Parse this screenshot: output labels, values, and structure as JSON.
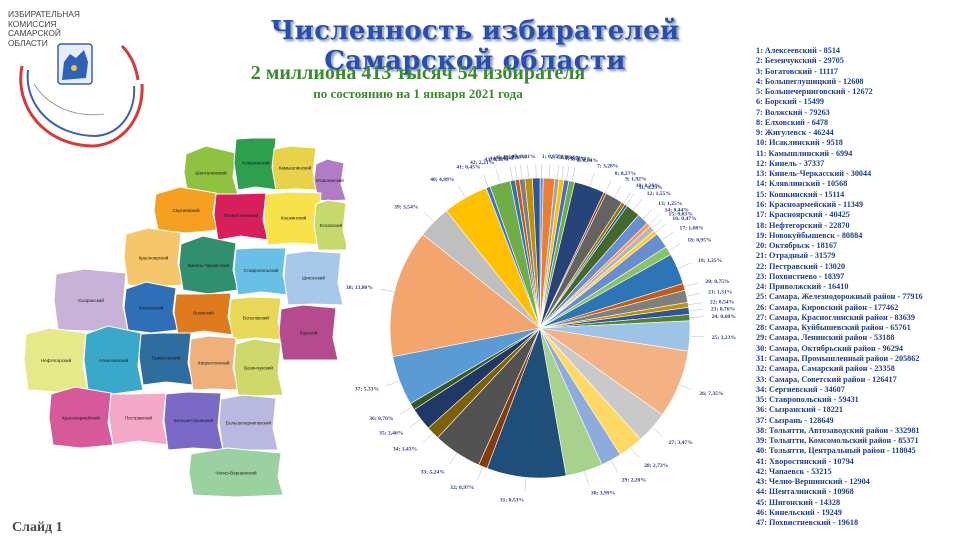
{
  "logo": {
    "text_lines": [
      "ИЗБИРАТЕЛЬНАЯ",
      "КОМИССИЯ",
      "САМАРСКОЙ",
      "ОБЛАСТИ"
    ]
  },
  "header": {
    "title": "Численность избирателей Самарской области",
    "subtitle": "2 миллиона 413 тысяч 54 избирателя",
    "subtitle_date": "по состоянию на 1 января 2021 года"
  },
  "footer": {
    "slide_label": "Слайд 1"
  },
  "legend": [
    "1: Алексеевский - 8514",
    "2: Безенчукский - 29705",
    "3: Богатовский - 11117",
    "4: Большеглушицкий - 12608",
    "5: Большечерниговский - 12672",
    "6: Борский - 15499",
    "7: Волжский - 79263",
    "8: Елховский - 6478",
    "9: Жигулевск - 46244",
    "10: Исаклинский - 9518",
    "11: Камышлинский - 6994",
    "12: Кинель - 37337",
    "13: Кинель-Черкасский - 30044",
    "14: Клявлинский - 10568",
    "15: Кошкинский - 15114",
    "16: Красноармейский - 11349",
    "17: Красноярский - 40425",
    "18: Нефтегорский - 22870",
    "19: Новокуйбышевск - 80884",
    "20: Октябрьск - 18167",
    "21: Отрадный - 31579",
    "22: Пестравский - 13020",
    "23: Похвистнево - 18397",
    "24: Приволжский - 16410",
    "25: Самара, Железнодорожный район - 77916",
    "26: Самара, Кировский район - 177462",
    "27: Самара, Красноглинский район - 83639",
    "28: Самара, Куйбышевский район - 65761",
    "29: Самара, Ленинский район - 53188",
    "30: Самара, Октябрьский район - 96294",
    "31: Самара, Промышленный район - 205862",
    "32: Самара, Самарский район - 23358",
    "33: Самара, Советский район - 126417",
    "34: Сергиевский - 34607",
    "35: Ставропольский - 59431",
    "36: Сызранский - 18221",
    "37: Сызрань - 128649",
    "38: Тольятти, Автозаводский район - 332981",
    "39: Тольятти, Комсомольский район - 85371",
    "40: Тольятти, Центральный район - 118045",
    "41: Хворостянский - 10794",
    "42: Чапаевск - 53215",
    "43: Челно-Вершинский - 12904",
    "44: Шенталинский - 10968",
    "45: Шигонский - 14328",
    "46: Кинельский - 19249",
    "47: Похвистневский - 19618"
  ],
  "chart_data": {
    "type": "pie",
    "slices": [
      {
        "id": 1,
        "label": "1; 0,35%",
        "value": 0.35,
        "color": "#5b9bd5"
      },
      {
        "id": 2,
        "label": "2; 1,23%",
        "value": 1.23,
        "color": "#ed7d31"
      },
      {
        "id": 3,
        "label": "3; 0,46%",
        "value": 0.46,
        "color": "#a5a5a5"
      },
      {
        "id": 4,
        "label": "4; 0,52%",
        "value": 0.52,
        "color": "#ffc000"
      },
      {
        "id": 5,
        "label": "5; 0,53%",
        "value": 0.53,
        "color": "#4472c4"
      },
      {
        "id": 6,
        "label": "6; 0,64%",
        "value": 0.64,
        "color": "#70ad47"
      },
      {
        "id": 7,
        "label": "7; 3,28%",
        "value": 3.28,
        "color": "#264478"
      },
      {
        "id": 8,
        "label": "8; 0,27%",
        "value": 0.27,
        "color": "#9e480e"
      },
      {
        "id": 9,
        "label": "9; 1,92%",
        "value": 1.92,
        "color": "#636363"
      },
      {
        "id": 10,
        "label": "10; 0,39%",
        "value": 0.39,
        "color": "#997300"
      },
      {
        "id": 11,
        "label": "11; 0,29%",
        "value": 0.29,
        "color": "#255e91"
      },
      {
        "id": 12,
        "label": "12; 1,55%",
        "value": 1.55,
        "color": "#43682b"
      },
      {
        "id": 13,
        "label": "13; 1,25%",
        "value": 1.25,
        "color": "#698ed0"
      },
      {
        "id": 14,
        "label": "14; 0,44%",
        "value": 0.44,
        "color": "#f1975a"
      },
      {
        "id": 15,
        "label": "15; 0,63%",
        "value": 0.63,
        "color": "#b7b7b7"
      },
      {
        "id": 16,
        "label": "16; 0,47%",
        "value": 0.47,
        "color": "#ffcd33"
      },
      {
        "id": 17,
        "label": "17; 1,68%",
        "value": 1.68,
        "color": "#698ed0"
      },
      {
        "id": 18,
        "label": "18; 0,95%",
        "value": 0.95,
        "color": "#8cc168"
      },
      {
        "id": 19,
        "label": "19; 3,35%",
        "value": 3.35,
        "color": "#2e75b6"
      },
      {
        "id": 20,
        "label": "20; 0,75%",
        "value": 0.75,
        "color": "#c55a11"
      },
      {
        "id": 21,
        "label": "21; 1,31%",
        "value": 1.31,
        "color": "#7f7f7f"
      },
      {
        "id": 22,
        "label": "22; 0,54%",
        "value": 0.54,
        "color": "#bf9000"
      },
      {
        "id": 23,
        "label": "23; 0,76%",
        "value": 0.76,
        "color": "#2f5597"
      },
      {
        "id": 24,
        "label": "24; 0,68%",
        "value": 0.68,
        "color": "#548235"
      },
      {
        "id": 25,
        "label": "25; 3,23%",
        "value": 3.23,
        "color": "#9dc3e6"
      },
      {
        "id": 26,
        "label": "26; 7,35%",
        "value": 7.35,
        "color": "#f4b183"
      },
      {
        "id": 27,
        "label": "27; 3,47%",
        "value": 3.47,
        "color": "#c9c9c9"
      },
      {
        "id": 28,
        "label": "28; 2,73%",
        "value": 2.73,
        "color": "#ffd966"
      },
      {
        "id": 29,
        "label": "29; 2,20%",
        "value": 2.2,
        "color": "#8faadc"
      },
      {
        "id": 30,
        "label": "30; 3,99%",
        "value": 3.99,
        "color": "#a9d18e"
      },
      {
        "id": 31,
        "label": "31; 8,53%",
        "value": 8.53,
        "color": "#1f4e79"
      },
      {
        "id": 32,
        "label": "32; 0,97%",
        "value": 0.97,
        "color": "#843c0c"
      },
      {
        "id": 33,
        "label": "33; 5,24%",
        "value": 5.24,
        "color": "#525252"
      },
      {
        "id": 34,
        "label": "34; 1,43%",
        "value": 1.43,
        "color": "#7f6000"
      },
      {
        "id": 35,
        "label": "35; 2,46%",
        "value": 2.46,
        "color": "#203864"
      },
      {
        "id": 36,
        "label": "36; 0,76%",
        "value": 0.76,
        "color": "#385723"
      },
      {
        "id": 37,
        "label": "37; 5,33%",
        "value": 5.33,
        "color": "#5b9bd5"
      },
      {
        "id": 38,
        "label": "38; 13,80%",
        "value": 13.8,
        "color": "#f4a56e"
      },
      {
        "id": 39,
        "label": "39; 3,54%",
        "value": 3.54,
        "color": "#bfbfbf"
      },
      {
        "id": 40,
        "label": "40; 4,89%",
        "value": 4.89,
        "color": "#ffc000"
      },
      {
        "id": 41,
        "label": "41; 0,45%",
        "value": 0.45,
        "color": "#4472c4"
      },
      {
        "id": 42,
        "label": "42; 2,21%",
        "value": 2.21,
        "color": "#70ad47"
      },
      {
        "id": 43,
        "label": "43; 0,53%",
        "value": 0.53,
        "color": "#2e75b6"
      },
      {
        "id": 44,
        "label": "44; 0,45%",
        "value": 0.45,
        "color": "#c55a11"
      },
      {
        "id": 45,
        "label": "45; 0,59%",
        "value": 0.59,
        "color": "#7f7f7f"
      },
      {
        "id": 46,
        "label": "46; 0,80%",
        "value": 0.8,
        "color": "#bf9000"
      },
      {
        "id": 47,
        "label": "47; 0,81%",
        "value": 0.81,
        "color": "#2f5597"
      }
    ]
  },
  "map": {
    "region_labels": [
      "Шенталинский",
      "Клявлинский",
      "Камышлинский",
      "Исаклинский",
      "Сергиевский",
      "Похвистневский",
      "Кошкинский",
      "Елховский",
      "Красноярский",
      "Кинель-Черкасский",
      "Ставропольский",
      "Шигонский",
      "Сызранский",
      "Кинельский",
      "Волжский",
      "Богатовский",
      "Борский",
      "Нефтегорский",
      "Алексеевский",
      "Приволжский",
      "Хворостянский",
      "Безенчукский",
      "Красноармейский",
      "Пестравский",
      "Большеглушицкий",
      "Большечерниговский",
      "Челно-Вершинский"
    ]
  }
}
